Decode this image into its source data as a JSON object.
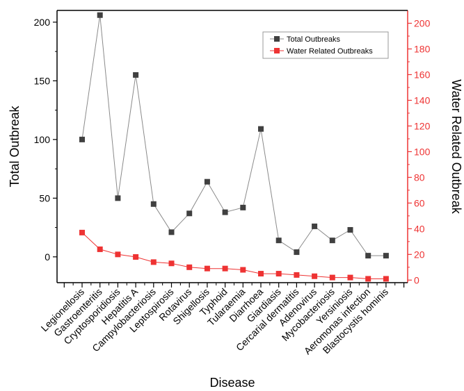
{
  "colors": {
    "total": "#404040",
    "total_line": "#8a8a8a",
    "water": "#ee3333",
    "axis": "#000000"
  },
  "chart_data": {
    "type": "line",
    "xlabel": "Disease",
    "ylabel_left": "Total Outbreak",
    "ylabel_right": "Water Related Outbreak",
    "ylim_left": [
      -22,
      210
    ],
    "ylim_right": [
      -2,
      210
    ],
    "yticks_left": [
      0,
      50,
      100,
      150,
      200
    ],
    "yticks_right": [
      0,
      20,
      40,
      60,
      80,
      100,
      120,
      140,
      160,
      180,
      200
    ],
    "categories": [
      "Legionellosis",
      "Gastroenteritis",
      "Cryptosporidiosis",
      "Hepatitis A",
      "Campylobacteriosis",
      "Leptospirosis",
      "Rotavirus",
      "Shigellosis",
      "Typhoid",
      "Tularaemia",
      "Diarrhoea",
      "Giardiasis",
      "Cercarial dermatitis",
      "Adenovirus",
      "Mycobacteriosis",
      "Yersiniosis",
      "Aeromonas infection",
      "Blastocystis hominis"
    ],
    "series": [
      {
        "name": "Total Outbreaks",
        "axis": "left",
        "marker": "square",
        "values": [
          100,
          206,
          50,
          155,
          45,
          21,
          37,
          64,
          38,
          42,
          109,
          14,
          4,
          26,
          14,
          23,
          1,
          1
        ]
      },
      {
        "name": "Water Related Outbreaks",
        "axis": "right",
        "marker": "square",
        "values": [
          37,
          24,
          20,
          18,
          14,
          13,
          10,
          9,
          9,
          8,
          5,
          5,
          4,
          3,
          2,
          2,
          1,
          1
        ]
      }
    ],
    "legend": {
      "position": "top-right"
    },
    "grid": false
  }
}
